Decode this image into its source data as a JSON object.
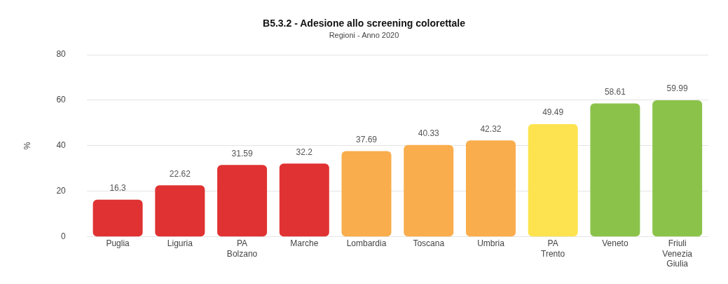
{
  "chart_data": {
    "type": "bar",
    "title": "B5.3.2 - Adesione allo screening colorettale",
    "subtitle": "Regioni - Anno 2020",
    "ylabel": "%",
    "categories": [
      "Puglia",
      "Liguria",
      "PA Bolzano",
      "Marche",
      "Lombardia",
      "Toscana",
      "Umbria",
      "PA Trento",
      "Veneto",
      "Friuli Venezia Giulia"
    ],
    "values": [
      16.3,
      22.62,
      31.59,
      32.2,
      37.69,
      40.33,
      42.32,
      49.49,
      58.61,
      59.99
    ],
    "colors": [
      "#e03232",
      "#e03232",
      "#e03232",
      "#e03232",
      "#f9ad4c",
      "#f9ad4c",
      "#f9ad4c",
      "#fde34f",
      "#8bc34a",
      "#8bc34a"
    ],
    "value_labels": [
      "16.3",
      "22.62",
      "31.59",
      "32.2",
      "37.69",
      "40.33",
      "42.32",
      "49.49",
      "58.61",
      "59.99"
    ],
    "ylim": [
      0,
      80
    ],
    "yticks": [
      0,
      20,
      40,
      60,
      80
    ],
    "grid": "y",
    "legend": false
  }
}
